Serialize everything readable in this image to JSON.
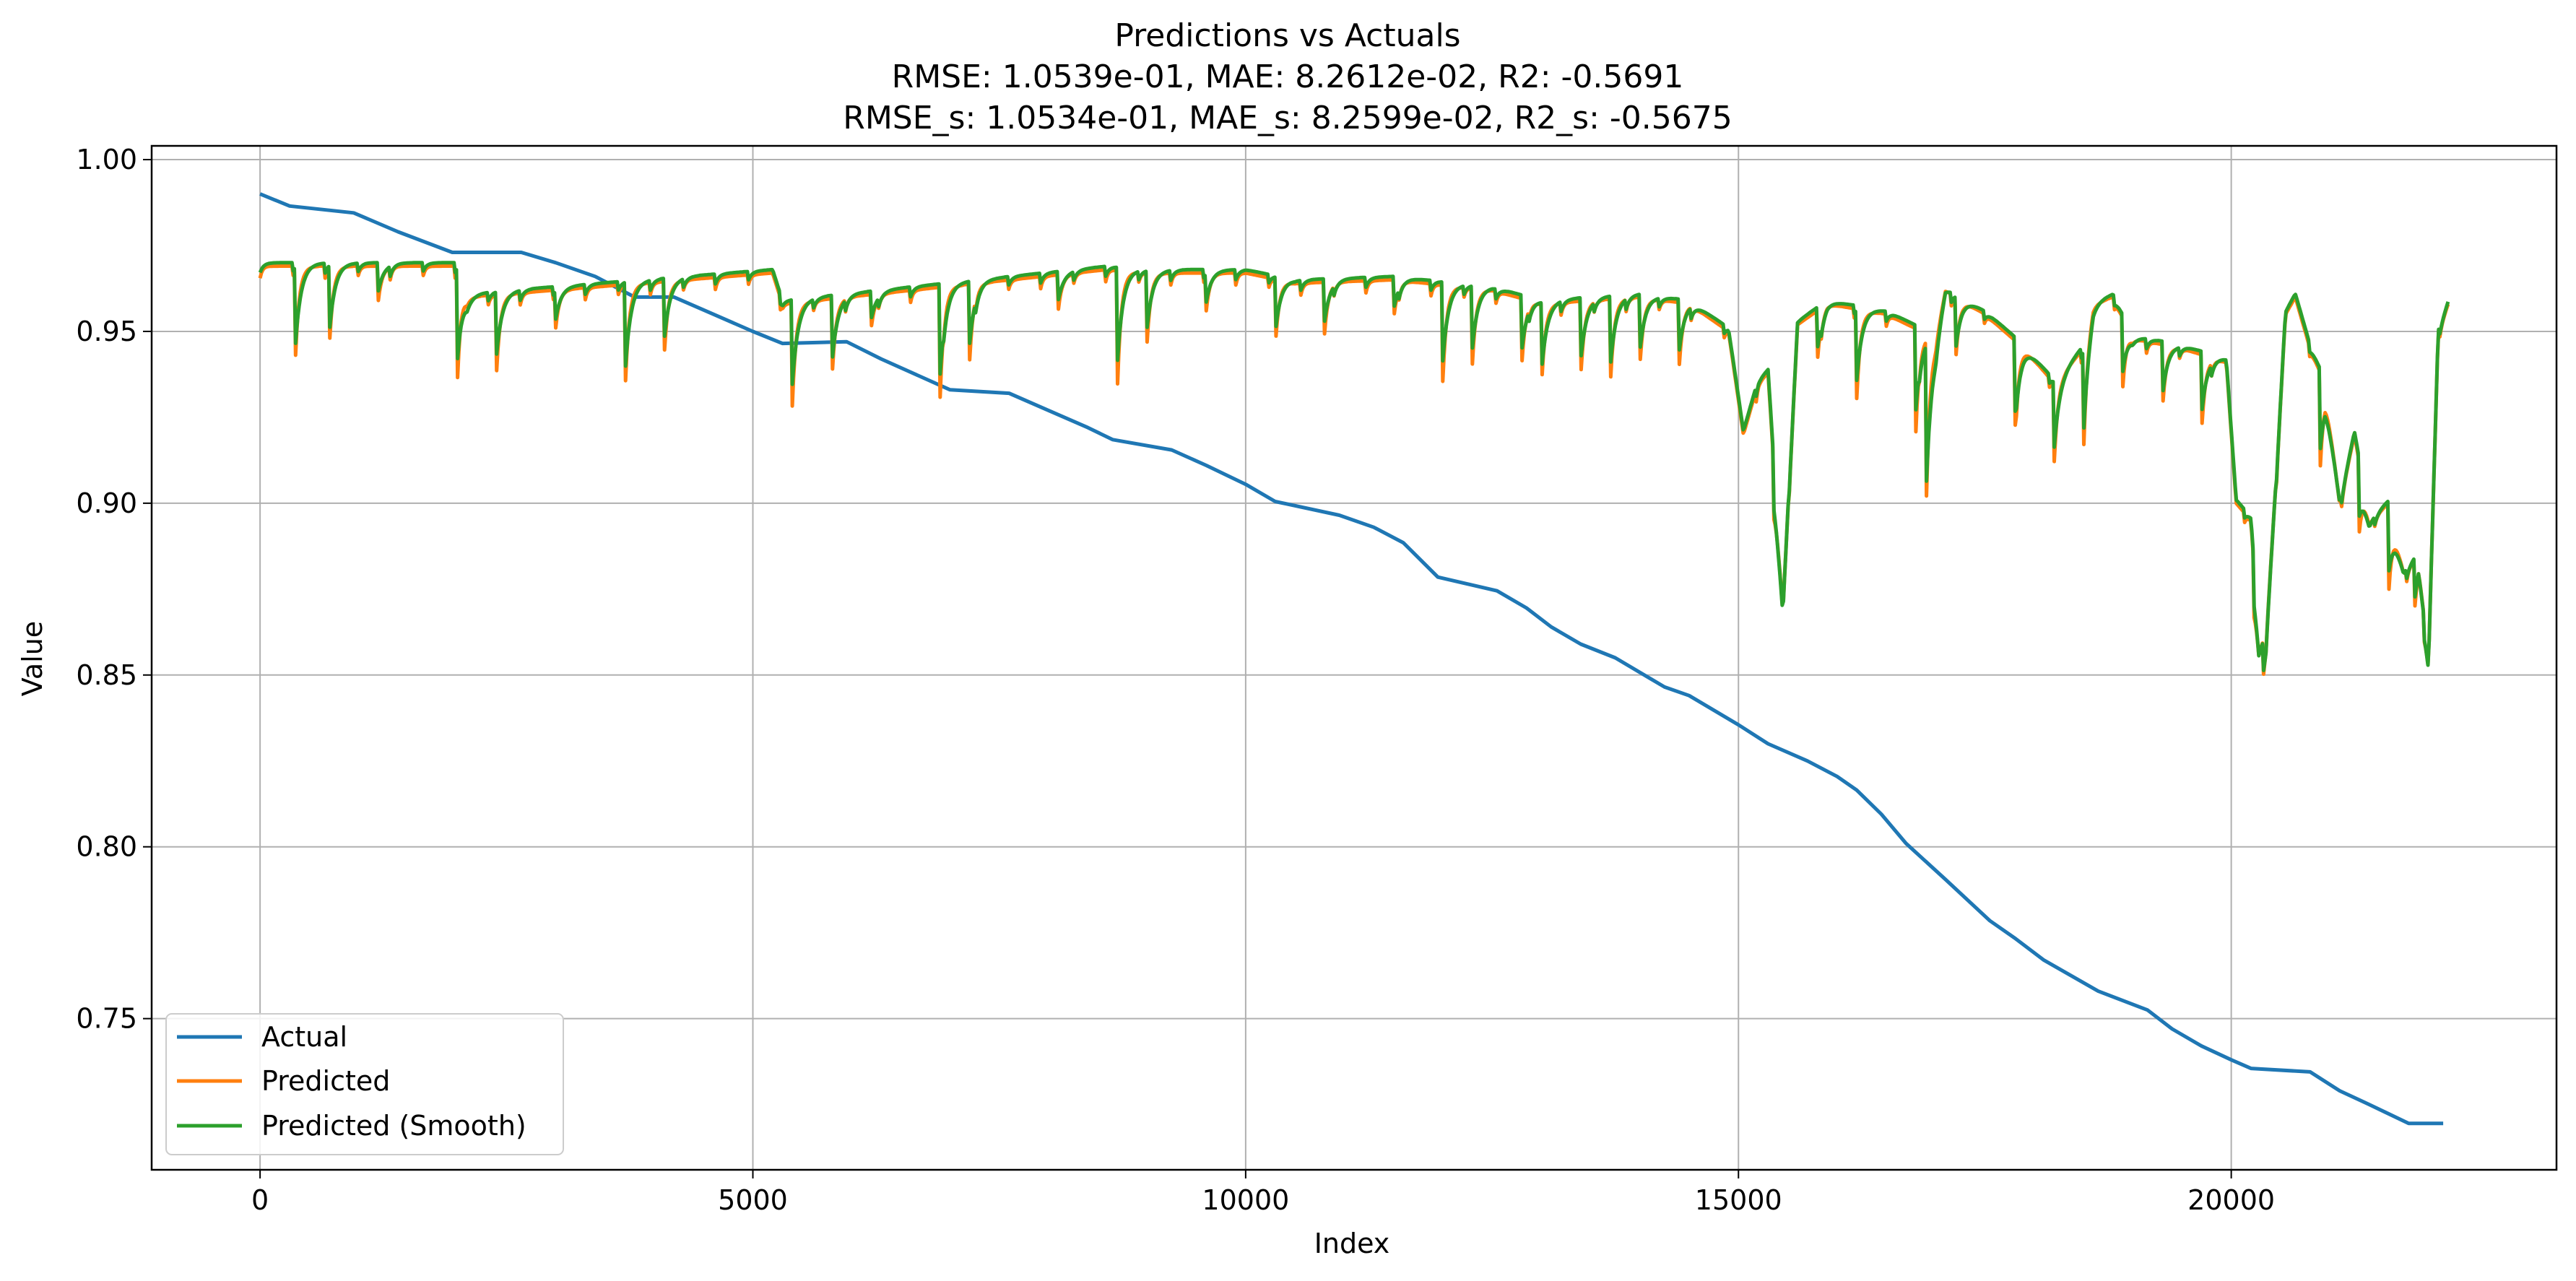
{
  "chart_data": {
    "type": "line",
    "title": "Predictions vs Actuals",
    "subtitle_lines": [
      "RMSE: 1.0539e-01, MAE: 8.2612e-02, R2: -0.5691",
      "RMSE_s: 1.0534e-01, MAE_s: 8.2599e-02, R2_s: -0.5675"
    ],
    "xlabel": "Index",
    "ylabel": "Value",
    "xlim": [
      -1100,
      23300
    ],
    "ylim": [
      0.706,
      1.004
    ],
    "xticks": [
      0,
      5000,
      10000,
      15000,
      20000
    ],
    "xtick_labels": [
      "0",
      "5000",
      "10000",
      "15000",
      "20000"
    ],
    "yticks": [
      0.75,
      0.8,
      0.85,
      0.9,
      0.95,
      1.0
    ],
    "ytick_labels": [
      "0.75",
      "0.80",
      "0.85",
      "0.90",
      "0.95",
      "1.00"
    ],
    "grid": true,
    "legend_position": "lower-left",
    "colors": {
      "actual": "#1f77b4",
      "predicted": "#ff7f0e",
      "smooth": "#2ca02c"
    },
    "series": [
      {
        "name": "Actual",
        "color": "#1f77b4",
        "x": [
          0,
          300,
          950,
          1400,
          1950,
          2650,
          3000,
          3400,
          3800,
          4200,
          4600,
          5000,
          5300,
          5950,
          6300,
          7000,
          7600,
          8000,
          8400,
          8650,
          9250,
          9600,
          10000,
          10300,
          10950,
          11300,
          11600,
          11950,
          12550,
          12850,
          13100,
          13400,
          13750,
          14250,
          14500,
          15000,
          15300,
          15700,
          16000,
          16200,
          16450,
          16700,
          17100,
          17550,
          17800,
          18100,
          18650,
          19150,
          19400,
          19700,
          20000,
          20200,
          20800,
          21100,
          21400,
          21800,
          22150
        ],
        "values": [
          0.99,
          0.9865,
          0.9845,
          0.979,
          0.973,
          0.973,
          0.97,
          0.966,
          0.96,
          0.96,
          0.955,
          0.95,
          0.9465,
          0.947,
          0.942,
          0.933,
          0.932,
          0.927,
          0.922,
          0.9185,
          0.9155,
          0.911,
          0.9055,
          0.9005,
          0.8965,
          0.893,
          0.8885,
          0.8785,
          0.8745,
          0.8695,
          0.864,
          0.859,
          0.855,
          0.8465,
          0.844,
          0.8355,
          0.83,
          0.825,
          0.8205,
          0.8165,
          0.8095,
          0.801,
          0.7905,
          0.7785,
          0.7735,
          0.767,
          0.758,
          0.7525,
          0.747,
          0.742,
          0.738,
          0.7355,
          0.7345,
          0.729,
          0.725,
          0.7195,
          0.7195
        ]
      },
      {
        "name": "Predicted",
        "color": "#ff7f0e"
      },
      {
        "name": "Predicted (Smooth)",
        "color": "#2ca02c"
      }
    ],
    "predicted_baseline": {
      "x": [
        0,
        2000,
        2100,
        5200,
        5300,
        8600,
        9000,
        10000,
        10500,
        11500,
        12500,
        13000,
        14000,
        14500,
        14900,
        15050,
        15200,
        15300,
        15450,
        15600,
        15900,
        16500,
        17000,
        17100,
        17500,
        17900,
        18200,
        18500,
        18600,
        18800,
        19000,
        19500,
        19950,
        20050,
        20200,
        20280,
        20350,
        20450,
        20550,
        20650,
        20800,
        20950,
        21100,
        21250,
        21400,
        21600,
        21750,
        21900,
        22000,
        22100,
        22200
      ],
      "values": [
        0.969,
        0.969,
        0.96,
        0.967,
        0.958,
        0.968,
        0.967,
        0.967,
        0.964,
        0.965,
        0.962,
        0.958,
        0.96,
        0.958,
        0.95,
        0.92,
        0.935,
        0.938,
        0.87,
        0.952,
        0.958,
        0.955,
        0.948,
        0.962,
        0.955,
        0.945,
        0.935,
        0.945,
        0.958,
        0.96,
        0.948,
        0.945,
        0.941,
        0.9,
        0.895,
        0.86,
        0.862,
        0.905,
        0.955,
        0.96,
        0.945,
        0.935,
        0.9,
        0.92,
        0.895,
        0.9,
        0.88,
        0.885,
        0.855,
        0.95,
        0.958
      ]
    },
    "predicted_dips": {
      "x": [
        350,
        700,
        1200,
        2000,
        2400,
        3000,
        3700,
        4100,
        5400,
        5800,
        6200,
        6900,
        7200,
        8100,
        8700,
        9000,
        9600,
        10300,
        10800,
        11500,
        12000,
        12300,
        12800,
        13000,
        13400,
        13700,
        14000,
        14400,
        15350,
        15800,
        16200,
        16800,
        16900,
        17200,
        17800,
        18200,
        18500,
        18900,
        19300,
        19700,
        20230,
        20320,
        20900,
        21300,
        21600,
        21860,
        21950
      ],
      "depth": [
        0.032,
        0.025,
        0.01,
        0.034,
        0.022,
        0.01,
        0.034,
        0.022,
        0.03,
        0.025,
        0.01,
        0.032,
        0.022,
        0.01,
        0.033,
        0.02,
        0.01,
        0.02,
        0.015,
        0.012,
        0.028,
        0.022,
        0.02,
        0.025,
        0.022,
        0.025,
        0.02,
        0.018,
        0.02,
        0.015,
        0.025,
        0.03,
        0.055,
        0.02,
        0.03,
        0.025,
        0.03,
        0.02,
        0.02,
        0.022,
        0.015,
        0.012,
        0.03,
        0.02,
        0.025,
        0.015,
        0.008
      ]
    },
    "legend": [
      "Actual",
      "Predicted",
      "Predicted (Smooth)"
    ]
  }
}
